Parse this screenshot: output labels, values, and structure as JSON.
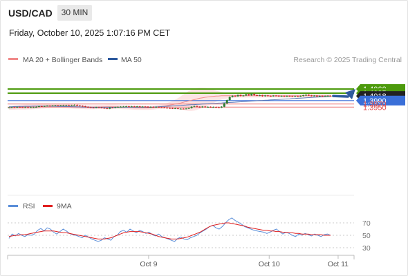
{
  "header": {
    "pair": "USD/CAD",
    "timeframe": "30 MIN",
    "datetime": "Friday, October 10, 2025 1:07:16 PM CET"
  },
  "legend": [
    {
      "label": "MA 20 + Bollinger Bands",
      "color": "#f08a8a"
    },
    {
      "label": "MA 50",
      "color": "#2e5a9e"
    }
  ],
  "credit": "Research © 2025 Trading Central",
  "colors": {
    "up_candle": "#2e7d32",
    "down_candle": "#c62828",
    "green_level": "#4c9a0c",
    "blue_level": "#3a6fd8",
    "red_level": "#f2a0a0",
    "current": "#222222",
    "rsi": "#5b8fd9",
    "rsi_ma": "#e02020",
    "band_fill": "#fde1e1"
  },
  "chart_data": [
    {
      "type": "candlestick",
      "title": "USD/CAD 30 MIN",
      "ylim": [
        1.3915,
        1.4085
      ],
      "levels": [
        {
          "value": 1.406,
          "label": "1.4060",
          "style": "resistance"
        },
        {
          "value": 1.4035,
          "label": "1.4035",
          "style": "resistance"
        },
        {
          "value": 1.4018,
          "label": "1.4018",
          "style": "current"
        },
        {
          "value": 1.399,
          "label": "1.3990",
          "style": "pivot"
        },
        {
          "value": 1.397,
          "label": "1.3970",
          "style": "support"
        },
        {
          "value": 1.395,
          "label": "1.3950",
          "style": "support"
        }
      ],
      "closes": [
        1.3948,
        1.395,
        1.3949,
        1.3951,
        1.395,
        1.3949,
        1.395,
        1.3949,
        1.395,
        1.395,
        1.3952,
        1.3956,
        1.3955,
        1.3957,
        1.3959,
        1.3958,
        1.396,
        1.3961,
        1.396,
        1.3961,
        1.3962,
        1.3962,
        1.3961,
        1.3962,
        1.3964,
        1.396,
        1.3958,
        1.3956,
        1.3952,
        1.395,
        1.3948,
        1.3947,
        1.395,
        1.3949,
        1.3946,
        1.3944,
        1.3941,
        1.3948,
        1.3947,
        1.395,
        1.3952,
        1.3953,
        1.3954,
        1.3955,
        1.3953,
        1.3955,
        1.3954,
        1.3955,
        1.3953,
        1.3954,
        1.3953,
        1.395,
        1.3952,
        1.395,
        1.3952,
        1.395,
        1.3949,
        1.3947,
        1.3945,
        1.3944,
        1.3942,
        1.3943,
        1.3941,
        1.3941,
        1.394,
        1.3942,
        1.3945,
        1.3953,
        1.3957,
        1.3953,
        1.395,
        1.3954,
        1.3951,
        1.3952,
        1.395,
        1.3951,
        1.395,
        1.3948,
        1.3953,
        1.3973,
        1.3993,
        1.4012,
        1.4019,
        1.4016,
        1.4024,
        1.4018,
        1.4021,
        1.4028,
        1.4022,
        1.403,
        1.4023,
        1.402,
        1.4022,
        1.4017,
        1.4021,
        1.4018,
        1.4017,
        1.402,
        1.4019,
        1.4017,
        1.4018,
        1.4016,
        1.4018,
        1.4017,
        1.4016,
        1.4017,
        1.4015,
        1.4018,
        1.4022,
        1.4025,
        1.4021,
        1.4018,
        1.402,
        1.4015,
        1.4018,
        1.4016,
        1.4018,
        1.4019,
        1.4018
      ],
      "ma20": [
        1.3946,
        1.3947,
        1.3948,
        1.3949,
        1.395,
        1.3951,
        1.3952,
        1.3953,
        1.3954,
        1.3955,
        1.3956,
        1.3957,
        1.3958,
        1.3958,
        1.3959,
        1.3959,
        1.3959,
        1.3959,
        1.3959,
        1.3959,
        1.3958,
        1.3957,
        1.3956,
        1.3955,
        1.3954,
        1.3953,
        1.3952,
        1.3951,
        1.395,
        1.395,
        1.395,
        1.395,
        1.3951,
        1.3951,
        1.3952,
        1.3952,
        1.3953,
        1.3953,
        1.3953,
        1.3953,
        1.3952,
        1.3951,
        1.395,
        1.395,
        1.3949,
        1.3948,
        1.3947,
        1.3946,
        1.3946,
        1.3946,
        1.3946,
        1.3946,
        1.3947,
        1.3948,
        1.395,
        1.3952,
        1.3954,
        1.3957,
        1.396,
        1.3963,
        1.3966,
        1.3969,
        1.3972,
        1.3976,
        1.398,
        1.3984,
        1.3988,
        1.3992,
        1.3996,
        1.4,
        1.4004,
        1.4007,
        1.401,
        1.4012,
        1.4014,
        1.4016,
        1.4017,
        1.4018,
        1.4019,
        1.4019,
        1.4019,
        1.4019,
        1.4019,
        1.4019,
        1.4019,
        1.4019,
        1.4019,
        1.4019,
        1.4019,
        1.4019,
        1.4019,
        1.4019,
        1.4019,
        1.4019,
        1.4019,
        1.4019,
        1.4019,
        1.4019,
        1.4019,
        1.4019,
        1.4019,
        1.4019,
        1.4019,
        1.4019,
        1.4019,
        1.4019,
        1.4019,
        1.4019,
        1.4019,
        1.4019,
        1.4019,
        1.4019,
        1.4019,
        1.4019,
        1.4019,
        1.4019,
        1.4019,
        1.4019,
        1.4019
      ],
      "ma50": [
        1.3953,
        1.3953,
        1.3954,
        1.3954,
        1.3955,
        1.3955,
        1.3956,
        1.3956,
        1.3956,
        1.3957,
        1.3957,
        1.3957,
        1.3957,
        1.3957,
        1.3957,
        1.3956,
        1.3956,
        1.3956,
        1.3955,
        1.3955,
        1.3954,
        1.3954,
        1.3954,
        1.3953,
        1.3953,
        1.3952,
        1.3952,
        1.3951,
        1.3951,
        1.3951,
        1.395,
        1.395,
        1.395,
        1.395,
        1.395,
        1.395,
        1.395,
        1.395,
        1.395,
        1.395,
        1.395,
        1.395,
        1.395,
        1.395,
        1.395,
        1.395,
        1.395,
        1.395,
        1.395,
        1.395,
        1.395,
        1.395,
        1.395,
        1.3951,
        1.3952,
        1.3953,
        1.3954,
        1.3955,
        1.3956,
        1.3957,
        1.3958,
        1.3959,
        1.396,
        1.3961,
        1.3962,
        1.3963,
        1.3964,
        1.3965,
        1.3966,
        1.3967,
        1.3968,
        1.3969,
        1.397,
        1.3971,
        1.3972,
        1.3973,
        1.3974,
        1.3975,
        1.3976,
        1.3977,
        1.3978,
        1.3979,
        1.398,
        1.3981,
        1.3982,
        1.3983,
        1.3984,
        1.3985,
        1.3986,
        1.3987,
        1.3988,
        1.3989,
        1.399,
        1.3991,
        1.3992,
        1.3993,
        1.3994,
        1.3995,
        1.3996,
        1.3997,
        1.3998,
        1.3999,
        1.4,
        1.4001,
        1.4002,
        1.4003,
        1.4004,
        1.4005,
        1.4006,
        1.4007,
        1.4008,
        1.4009,
        1.401,
        1.4011,
        1.4012,
        1.4013,
        1.4014,
        1.4015,
        1.4016
      ],
      "band_width": [
        0.0012,
        0.0012,
        0.0013,
        0.0013,
        0.0014,
        0.0015,
        0.0016,
        0.0016,
        0.0017,
        0.0017,
        0.0017,
        0.0017,
        0.0016,
        0.0016,
        0.0015,
        0.0014,
        0.0013,
        0.0013,
        0.0013,
        0.0013,
        0.0013,
        0.0013,
        0.0013,
        0.0013,
        0.0013,
        0.0013,
        0.0012,
        0.0012,
        0.0012,
        0.0012,
        0.0012,
        0.0012,
        0.0012,
        0.0012,
        0.0012,
        0.0012,
        0.0012,
        0.0012,
        0.0012,
        0.0012,
        0.0012,
        0.0012,
        0.0012,
        0.0012,
        0.0012,
        0.0012,
        0.0012,
        0.0012,
        0.0012,
        0.0012,
        0.0012,
        0.0012,
        0.0012,
        0.0012,
        0.0012,
        0.0012,
        0.0013,
        0.0014,
        0.0016,
        0.0018,
        0.0022,
        0.0027,
        0.0033,
        0.004,
        0.0047,
        0.0054,
        0.006,
        0.0064,
        0.0066,
        0.0066,
        0.0064,
        0.0061,
        0.0057,
        0.0052,
        0.0046,
        0.004,
        0.0034,
        0.0028,
        0.0023,
        0.0019,
        0.0016,
        0.0014,
        0.0012,
        0.0011,
        0.001,
        0.001,
        0.001,
        0.001,
        0.001,
        0.001,
        0.001,
        0.001,
        0.001,
        0.001,
        0.001,
        0.001,
        0.001,
        0.001,
        0.001,
        0.001,
        0.001,
        0.001,
        0.001,
        0.001,
        0.001,
        0.001,
        0.001,
        0.001,
        0.001,
        0.001,
        0.001,
        0.001,
        0.001,
        0.001,
        0.001,
        0.001,
        0.001,
        0.001,
        0.001
      ],
      "projection": {
        "from": 1.4018,
        "to": 1.406
      }
    },
    {
      "type": "line",
      "ylim": [
        20,
        90
      ],
      "ticks": [
        "70",
        "50",
        "30"
      ],
      "tick_values": [
        70,
        50,
        30
      ],
      "series": [
        {
          "name": "RSI",
          "values": [
            45,
            52,
            49,
            53,
            50,
            48,
            51,
            50,
            52,
            58,
            61,
            57,
            62,
            60,
            55,
            52,
            56,
            60,
            57,
            53,
            51,
            50,
            48,
            46,
            50,
            47,
            44,
            42,
            40,
            42,
            46,
            44,
            42,
            48,
            50,
            56,
            58,
            55,
            60,
            57,
            54,
            58,
            56,
            53,
            55,
            51,
            49,
            52,
            48,
            46,
            44,
            42,
            40,
            45,
            47,
            44,
            43,
            46,
            48,
            50,
            54,
            57,
            60,
            64,
            66,
            62,
            60,
            64,
            70,
            75,
            78,
            74,
            71,
            68,
            64,
            62,
            60,
            58,
            57,
            56,
            55,
            53,
            55,
            58,
            60,
            56,
            52,
            55,
            53,
            50,
            48,
            52,
            50,
            53,
            51,
            49,
            52,
            50,
            48,
            51,
            52,
            50
          ],
          "x_start": 0
        },
        {
          "name": "9MA",
          "values": [
            48,
            49,
            50,
            50,
            51,
            51,
            52,
            53,
            54,
            55,
            56,
            57,
            57,
            57,
            57,
            56,
            55,
            54,
            54,
            53,
            52,
            51,
            50,
            49,
            48,
            47,
            46,
            45,
            44,
            44,
            44,
            45,
            46,
            48,
            50,
            52,
            54,
            55,
            56,
            56,
            56,
            56,
            55,
            54,
            53,
            52,
            50,
            48,
            47,
            46,
            45,
            44,
            44,
            44,
            45,
            46,
            47,
            49,
            51,
            53,
            55,
            58,
            61,
            64,
            66,
            67,
            68,
            69,
            70,
            70,
            69,
            68,
            67,
            66,
            65,
            63,
            62,
            61,
            60,
            59,
            58,
            58,
            57,
            57,
            56,
            56,
            55,
            55,
            54,
            54,
            53,
            53,
            52,
            52,
            52,
            51,
            51,
            51,
            51,
            50,
            50,
            50
          ],
          "x_start": 0
        }
      ],
      "legend": [
        "RSI",
        "9MA"
      ]
    }
  ],
  "xaxis": {
    "labels": [
      "Oct 9",
      "Oct 10",
      "Oct 11"
    ],
    "positions": [
      0.407,
      0.755,
      0.954
    ]
  }
}
